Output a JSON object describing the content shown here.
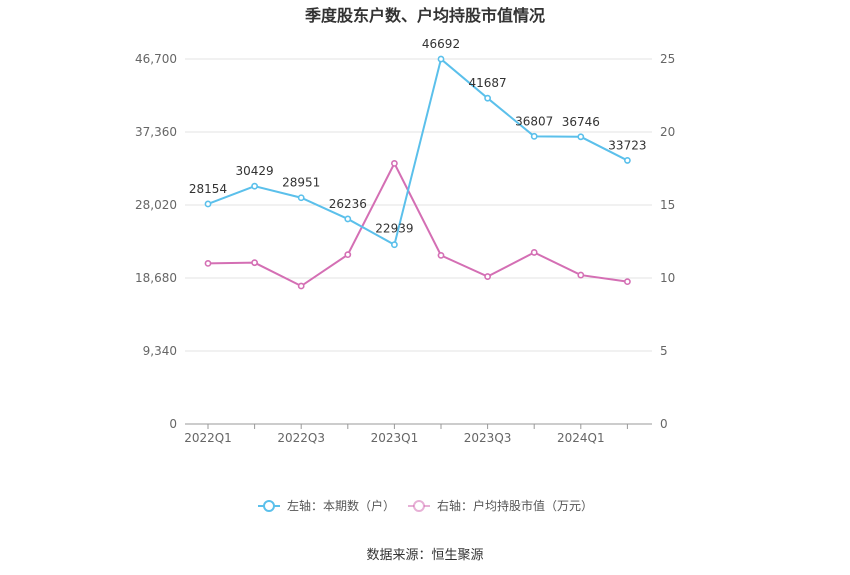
{
  "chart_data": {
    "type": "line",
    "title": "季度股东户数、户均持股市值情况",
    "categories": [
      "2022Q1",
      "2022Q2",
      "2022Q3",
      "2022Q4",
      "2023Q1",
      "2023Q2",
      "2023Q3",
      "2023Q4",
      "2024Q1",
      "2024Q2"
    ],
    "x_tick_labels": [
      "2022Q1",
      "2022Q3",
      "2023Q1",
      "2023Q3",
      "2024Q1"
    ],
    "left_axis": {
      "ylim": [
        0,
        46700
      ],
      "ticks": [
        "0",
        "9,340",
        "18,680",
        "28,020",
        "37,360",
        "46,700"
      ],
      "tick_values": [
        0,
        9340,
        18680,
        28020,
        37360,
        46700
      ]
    },
    "right_axis": {
      "ylim": [
        0,
        25
      ],
      "ticks": [
        "0",
        "5",
        "10",
        "15",
        "20",
        "25"
      ],
      "tick_values": [
        0,
        5,
        10,
        15,
        20,
        25
      ]
    },
    "series": [
      {
        "name": "左轴：本期数（户）",
        "axis": "left",
        "color": "#5bc0eb",
        "values": [
          28154,
          30429,
          28951,
          26236,
          22939,
          46692,
          41687,
          36807,
          36746,
          33723
        ],
        "labels": [
          "28154",
          "30429",
          "28951",
          "26236",
          "22939",
          "46692",
          "41687",
          "36807",
          "36746",
          "33723"
        ]
      },
      {
        "name": "右轴：户均持股市值（万元）",
        "axis": "right",
        "color": "#d46fb4",
        "values": [
          11.0,
          11.05,
          9.45,
          11.6,
          17.85,
          11.55,
          10.1,
          11.75,
          10.2,
          9.75
        ]
      }
    ],
    "grid": true,
    "legend_position": "bottom"
  },
  "source": "数据来源：恒生聚源"
}
